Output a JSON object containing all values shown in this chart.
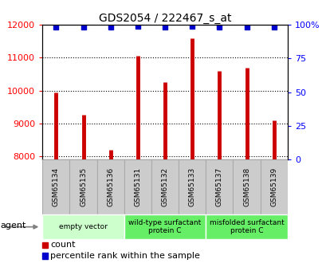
{
  "title": "GDS2054 / 222467_s_at",
  "samples": [
    "GSM65134",
    "GSM65135",
    "GSM65136",
    "GSM65131",
    "GSM65132",
    "GSM65133",
    "GSM65137",
    "GSM65138",
    "GSM65139"
  ],
  "counts": [
    9950,
    9250,
    8200,
    11050,
    10250,
    11600,
    10600,
    10700,
    9100
  ],
  "percentiles": [
    98,
    98,
    98,
    99,
    98,
    99,
    98,
    98,
    98
  ],
  "ylim_left": [
    7900,
    12000
  ],
  "ylim_right": [
    0,
    100
  ],
  "yticks_left": [
    8000,
    9000,
    10000,
    11000,
    12000
  ],
  "yticks_right": [
    0,
    25,
    50,
    75,
    100
  ],
  "groups": [
    {
      "label": "empty vector",
      "indices": [
        0,
        1,
        2
      ],
      "color": "#ccffcc"
    },
    {
      "label": "wild-type surfactant\nprotein C",
      "indices": [
        3,
        4,
        5
      ],
      "color": "#66ee66"
    },
    {
      "label": "misfolded surfactant\nprotein C",
      "indices": [
        6,
        7,
        8
      ],
      "color": "#66ee66"
    }
  ],
  "bar_color": "#cc0000",
  "dot_color": "#0000cc",
  "gray_cell_color": "#cccccc",
  "gray_cell_edge": "#aaaaaa",
  "baseline": 7900,
  "agent_label": "agent",
  "legend_count_label": "count",
  "legend_pct_label": "percentile rank within the sample"
}
